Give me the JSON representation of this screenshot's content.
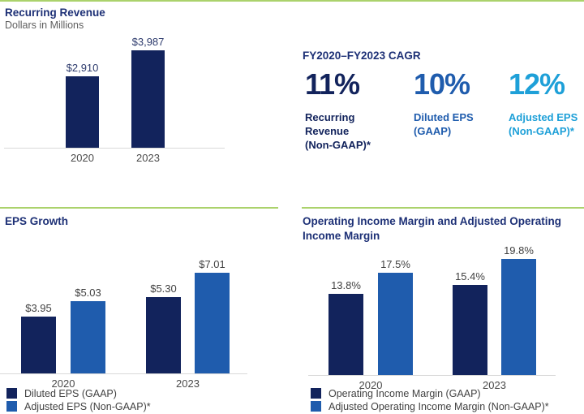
{
  "page": {
    "accent_green": "#abd26c",
    "background": "#ffffff"
  },
  "colors": {
    "navy": "#12235c",
    "blue": "#1f5cad",
    "light_blue": "#1ea0d8",
    "title_navy": "#1d3076",
    "axis_gray": "#4a4a4a",
    "baseline_gray": "#d9d9d9"
  },
  "cagr": {
    "header": "FY2020–FY2023 CAGR",
    "stats": [
      {
        "value": "11%",
        "label": "Recurring\nRevenue\n(Non-GAAP)*",
        "color": "#12235c"
      },
      {
        "value": "10%",
        "label": "Diluted EPS\n(GAAP)",
        "color": "#1f5cad"
      },
      {
        "value": "12%",
        "label": "Adjusted EPS\n(Non-GAAP)*",
        "color": "#1ea0d8"
      }
    ]
  },
  "chart_data": [
    {
      "id": "recurring_revenue",
      "type": "bar",
      "title": "Recurring Revenue",
      "subtitle": "Dollars in Millions",
      "categories": [
        "2020",
        "2023"
      ],
      "values": [
        2910,
        3987
      ],
      "value_labels": [
        "$2,910",
        "$3,987"
      ],
      "ylim": [
        0,
        4500
      ],
      "bar_color": "#12235c",
      "grid": false,
      "legend_position": "none"
    },
    {
      "id": "eps_growth",
      "type": "bar",
      "title": "EPS Growth",
      "categories": [
        "2020",
        "2023"
      ],
      "series": [
        {
          "name": "Diluted EPS (GAAP)",
          "color": "#12235c",
          "values": [
            3.95,
            5.3
          ],
          "value_labels": [
            "$3.95",
            "$5.30"
          ]
        },
        {
          "name": "Adjusted EPS (Non-GAAP)*",
          "color": "#1f5cad",
          "values": [
            5.03,
            7.01
          ],
          "value_labels": [
            "$5.03",
            "$7.01"
          ]
        }
      ],
      "ylim": [
        0,
        7.9
      ],
      "grid": false,
      "legend_position": "bottom-left"
    },
    {
      "id": "operating_margin",
      "type": "bar",
      "title": "Operating Income Margin and Adjusted Operating\nIncome Margin",
      "categories": [
        "2020",
        "2023"
      ],
      "series": [
        {
          "name": "Operating Income Margin (GAAP)",
          "color": "#12235c",
          "values": [
            13.8,
            15.4
          ],
          "value_labels": [
            "13.8%",
            "15.4%"
          ]
        },
        {
          "name": "Adjusted Operating Income Margin (Non-GAAP)*",
          "color": "#1f5cad",
          "values": [
            17.5,
            19.8
          ],
          "value_labels": [
            "17.5%",
            "19.8%"
          ]
        }
      ],
      "ylim": [
        0,
        22
      ],
      "grid": false,
      "legend_position": "bottom-left"
    }
  ]
}
